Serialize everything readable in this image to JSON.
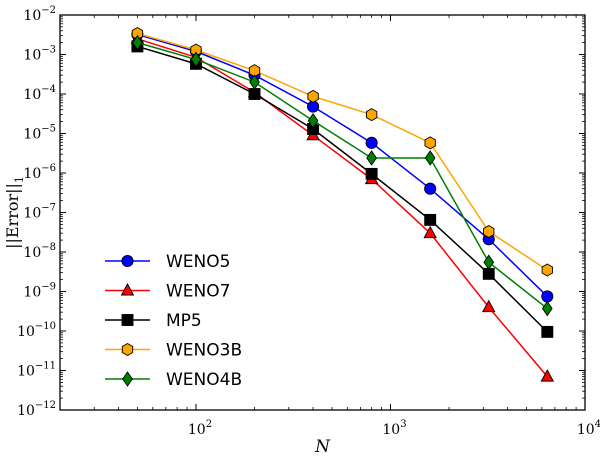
{
  "chart_data": {
    "type": "line",
    "title": "",
    "xlabel": "N",
    "ylabel": "||Error||",
    "ylabel_subscript": "1",
    "xscale": "log",
    "yscale": "log",
    "xlim": [
      20,
      10000
    ],
    "ylim": [
      1e-12,
      0.01
    ],
    "legend_location": "lower-left",
    "x": [
      50,
      100,
      200,
      400,
      800,
      1600,
      3200,
      6400
    ],
    "x_ticks": [
      {
        "base": "10",
        "exp": "2",
        "value": 100
      },
      {
        "base": "10",
        "exp": "3",
        "value": 1000
      },
      {
        "base": "10",
        "exp": "4",
        "value": 10000
      }
    ],
    "y_ticks": [
      {
        "base": "10",
        "exp": "−2",
        "value": 0.01
      },
      {
        "base": "10",
        "exp": "−3",
        "value": 0.001
      },
      {
        "base": "10",
        "exp": "−4",
        "value": 0.0001
      },
      {
        "base": "10",
        "exp": "−5",
        "value": 1e-05
      },
      {
        "base": "10",
        "exp": "−6",
        "value": 1e-06
      },
      {
        "base": "10",
        "exp": "−7",
        "value": 1e-07
      },
      {
        "base": "10",
        "exp": "−8",
        "value": 1e-08
      },
      {
        "base": "10",
        "exp": "−9",
        "value": 1e-09
      },
      {
        "base": "10",
        "exp": "−10",
        "value": 1e-10
      },
      {
        "base": "10",
        "exp": "−11",
        "value": 1e-11
      },
      {
        "base": "10",
        "exp": "−12",
        "value": 1e-12
      }
    ],
    "series": [
      {
        "name": "WENO5",
        "color": "#0000ff",
        "marker": "circle",
        "values": [
          0.0032,
          0.0012,
          0.0003,
          4.8e-05,
          5.8e-06,
          4e-07,
          2.1e-08,
          7.5e-10
        ]
      },
      {
        "name": "WENO7",
        "color": "#ff0000",
        "marker": "triangle",
        "values": [
          0.0025,
          0.00085,
          0.00011,
          9e-06,
          7e-07,
          3e-08,
          4e-10,
          7e-12
        ]
      },
      {
        "name": "MP5",
        "color": "#000000",
        "marker": "square",
        "values": [
          0.0016,
          0.00058,
          0.0001,
          1.3e-05,
          9.5e-07,
          6.5e-08,
          2.8e-09,
          9.5e-11
        ]
      },
      {
        "name": "WENO3B",
        "color": "#ffa500",
        "marker": "hexagon",
        "values": [
          0.0034,
          0.0013,
          0.00039,
          8.7e-05,
          3e-05,
          5.8e-06,
          3.3e-08,
          3.5e-09
        ]
      },
      {
        "name": "WENO4B",
        "color": "#008000",
        "marker": "diamond",
        "values": [
          0.002,
          0.00075,
          0.0002,
          2.1e-05,
          2.4e-06,
          2.4e-06,
          5.5e-09,
          3.7e-10
        ]
      }
    ]
  }
}
